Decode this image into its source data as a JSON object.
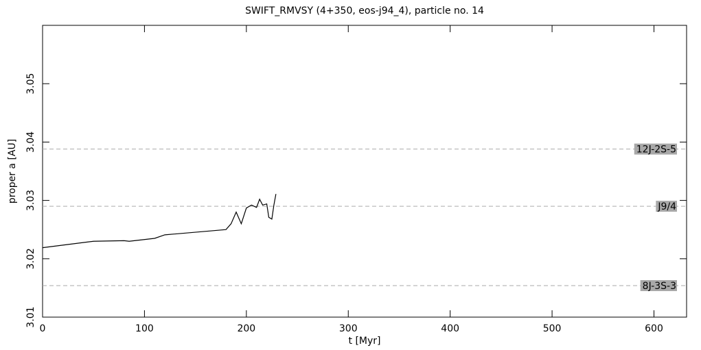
{
  "chart_data": {
    "type": "line",
    "title": "SWIFT_RMVSY (4+350, eos-j94_4), particle no. 14",
    "x_label": "t [Myr]",
    "y_label": "proper a [AU]",
    "xlim": [
      0,
      632
    ],
    "ylim": [
      3.01,
      3.06
    ],
    "xticks": [
      0,
      100,
      200,
      300,
      400,
      500,
      600
    ],
    "yticks": [
      3.01,
      3.02,
      3.03,
      3.04,
      3.05
    ],
    "color": "#000000",
    "x": [
      0,
      50,
      80,
      85,
      110,
      120,
      180,
      185,
      190,
      195,
      200,
      205,
      210,
      213,
      216,
      220,
      222,
      225,
      227,
      229
    ],
    "values": [
      3.0219,
      3.023,
      3.0231,
      3.023,
      3.0235,
      3.0241,
      3.025,
      3.026,
      3.028,
      3.026,
      3.0287,
      3.0292,
      3.0288,
      3.0302,
      3.0292,
      3.0294,
      3.0271,
      3.0268,
      3.0292,
      3.0311
    ],
    "reference_lines": [
      {
        "label": "12J-2S-5",
        "value": 3.0388
      },
      {
        "label": "J9/4",
        "value": 3.029
      },
      {
        "label": "8J-3S-3",
        "value": 3.0154
      }
    ]
  }
}
